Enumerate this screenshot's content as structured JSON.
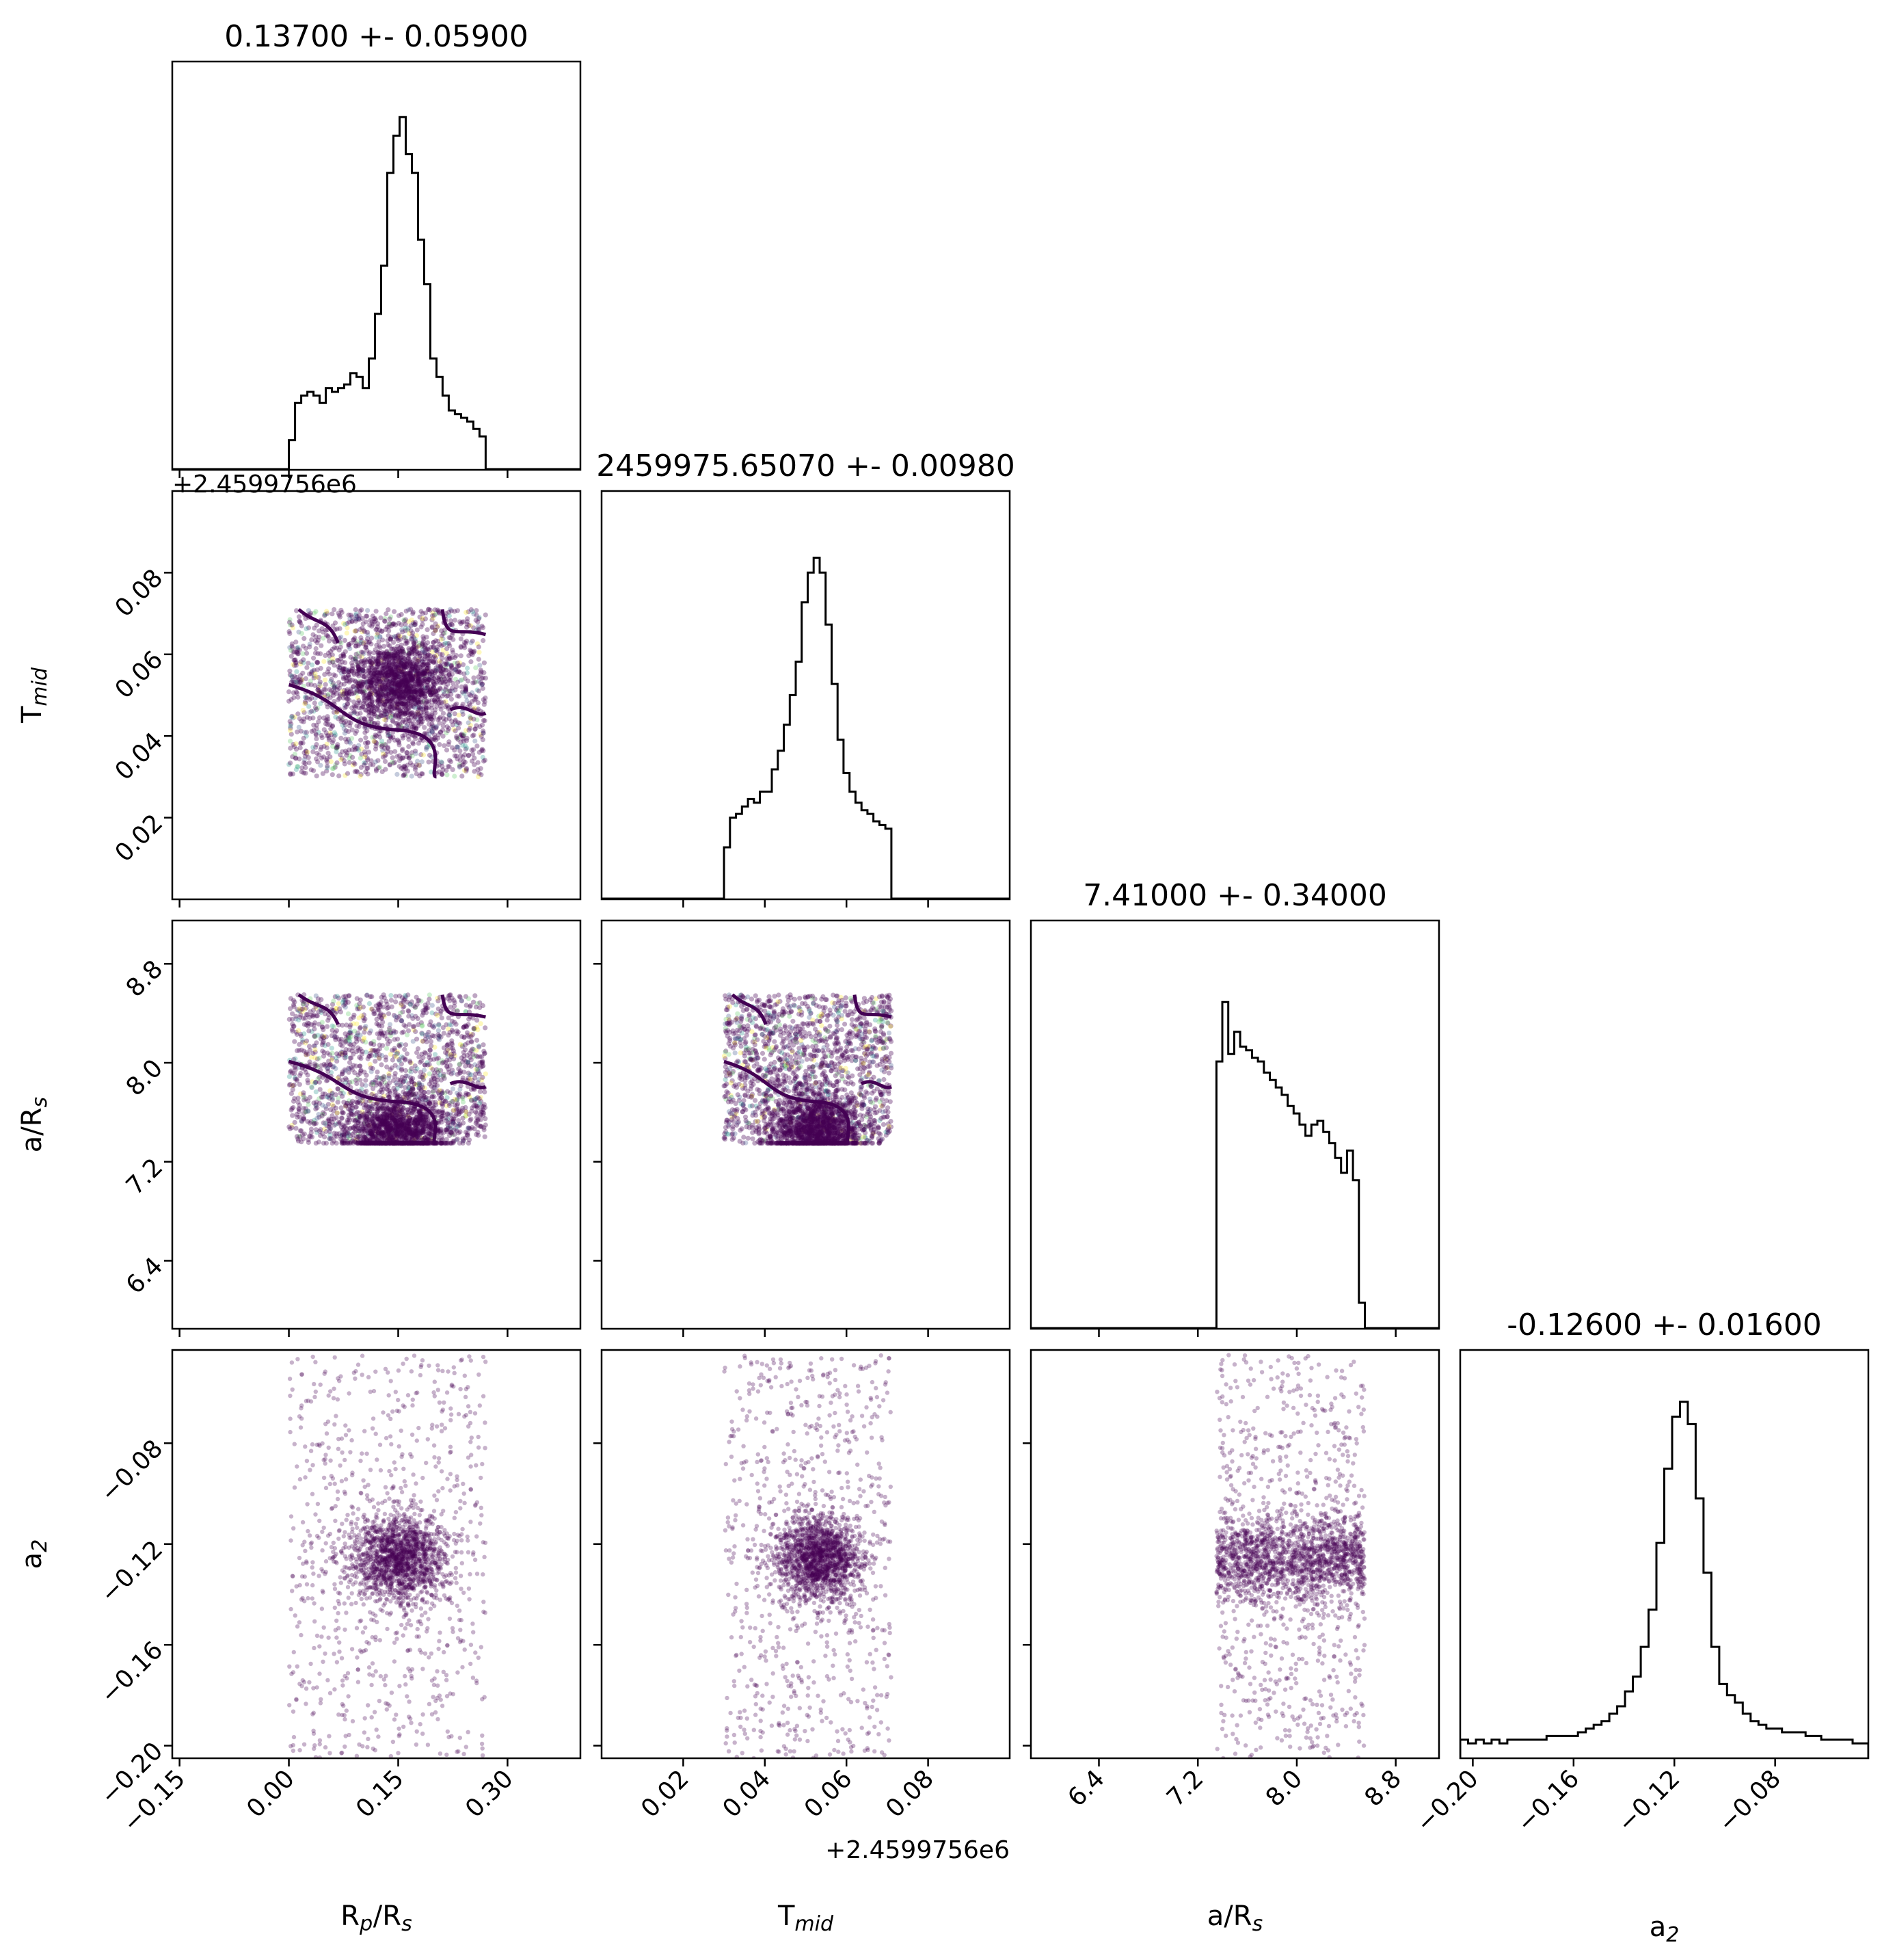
{
  "chart_data": {
    "type": "corner",
    "parameters": [
      {
        "key": "rp",
        "label": "R",
        "label_sub": "p",
        "label_rest": "/R",
        "label_sub2": "s",
        "title": "0.13700 +- 0.05900",
        "range": [
          -0.16,
          0.4
        ],
        "ticks": [
          -0.15,
          0.0,
          0.15,
          0.3
        ],
        "tick_labels": [
          "−0.15",
          "0.00",
          "0.15",
          "0.30"
        ],
        "sample_range": [
          0.0,
          0.27
        ],
        "center": 0.15,
        "offset_text": ""
      },
      {
        "key": "tmid",
        "label": "T",
        "label_sub": "mid",
        "label_rest": "",
        "label_sub2": "",
        "title": "2459975.65070 +- 0.00980",
        "range": [
          0.0,
          0.1
        ],
        "ticks": [
          0.02,
          0.04,
          0.06,
          0.08
        ],
        "tick_labels": [
          "0.02",
          "0.04",
          "0.06",
          "0.08"
        ],
        "sample_range": [
          0.03,
          0.071
        ],
        "center": 0.053,
        "offset_text": "+2.4599756e6"
      },
      {
        "key": "ars",
        "label": "a/R",
        "label_sub": "s",
        "label_rest": "",
        "label_sub2": "",
        "title": "7.41000 +- 0.34000",
        "range": [
          5.85,
          9.15
        ],
        "ticks": [
          6.4,
          7.2,
          8.0,
          8.8
        ],
        "tick_labels": [
          "6.4",
          "7.2",
          "8.0",
          "8.8"
        ],
        "sample_range": [
          7.35,
          8.55
        ],
        "center": 7.45,
        "offset_text": ""
      },
      {
        "key": "a2",
        "label": "a",
        "label_sub": "2",
        "label_rest": "",
        "label_sub2": "",
        "title": "-0.12600 +- 0.01600",
        "range": [
          -0.205,
          -0.043
        ],
        "ticks": [
          -0.2,
          -0.16,
          -0.12,
          -0.08
        ],
        "tick_labels": [
          "−0.20",
          "−0.16",
          "−0.12",
          "−0.08"
        ],
        "sample_range": [
          -0.205,
          -0.045
        ],
        "center": -0.126,
        "offset_text": ""
      }
    ],
    "histograms": {
      "rp": {
        "start": 0.0,
        "end": 0.27,
        "heights": [
          0.08,
          0.18,
          0.2,
          0.21,
          0.2,
          0.18,
          0.22,
          0.21,
          0.22,
          0.23,
          0.26,
          0.25,
          0.22,
          0.3,
          0.42,
          0.55,
          0.8,
          0.9,
          0.95,
          0.85,
          0.8,
          0.62,
          0.5,
          0.3,
          0.25,
          0.2,
          0.16,
          0.15,
          0.14,
          0.13,
          0.11,
          0.09
        ]
      },
      "tmid": {
        "start": 0.03,
        "end": 0.071,
        "heights": [
          0.14,
          0.22,
          0.23,
          0.25,
          0.27,
          0.26,
          0.29,
          0.29,
          0.35,
          0.4,
          0.47,
          0.55,
          0.64,
          0.8,
          0.88,
          0.92,
          0.88,
          0.74,
          0.58,
          0.43,
          0.34,
          0.29,
          0.26,
          0.24,
          0.23,
          0.21,
          0.2,
          0.19
        ]
      },
      "ars": {
        "start": 7.35,
        "end": 8.55,
        "heights": [
          0.72,
          0.88,
          0.74,
          0.8,
          0.76,
          0.75,
          0.73,
          0.72,
          0.69,
          0.67,
          0.65,
          0.63,
          0.6,
          0.58,
          0.55,
          0.52,
          0.55,
          0.56,
          0.53,
          0.5,
          0.46,
          0.42,
          0.48,
          0.4,
          0.07
        ]
      },
      "a2": {
        "start": -0.205,
        "end": -0.043,
        "heights": [
          0.05,
          0.04,
          0.05,
          0.04,
          0.05,
          0.04,
          0.05,
          0.05,
          0.05,
          0.05,
          0.05,
          0.06,
          0.06,
          0.06,
          0.06,
          0.07,
          0.08,
          0.09,
          0.1,
          0.12,
          0.14,
          0.18,
          0.22,
          0.3,
          0.4,
          0.58,
          0.78,
          0.92,
          0.96,
          0.9,
          0.7,
          0.5,
          0.3,
          0.2,
          0.17,
          0.15,
          0.12,
          0.1,
          0.09,
          0.08,
          0.08,
          0.07,
          0.07,
          0.07,
          0.06,
          0.06,
          0.05,
          0.05,
          0.05,
          0.05,
          0.04,
          0.04
        ]
      }
    },
    "colors": {
      "scatter": "#440154",
      "contour": "#440154",
      "hist": "#000000",
      "extra_points": [
        "#fde725",
        "#21918c",
        "#3b528b",
        "#5ec962"
      ]
    }
  }
}
